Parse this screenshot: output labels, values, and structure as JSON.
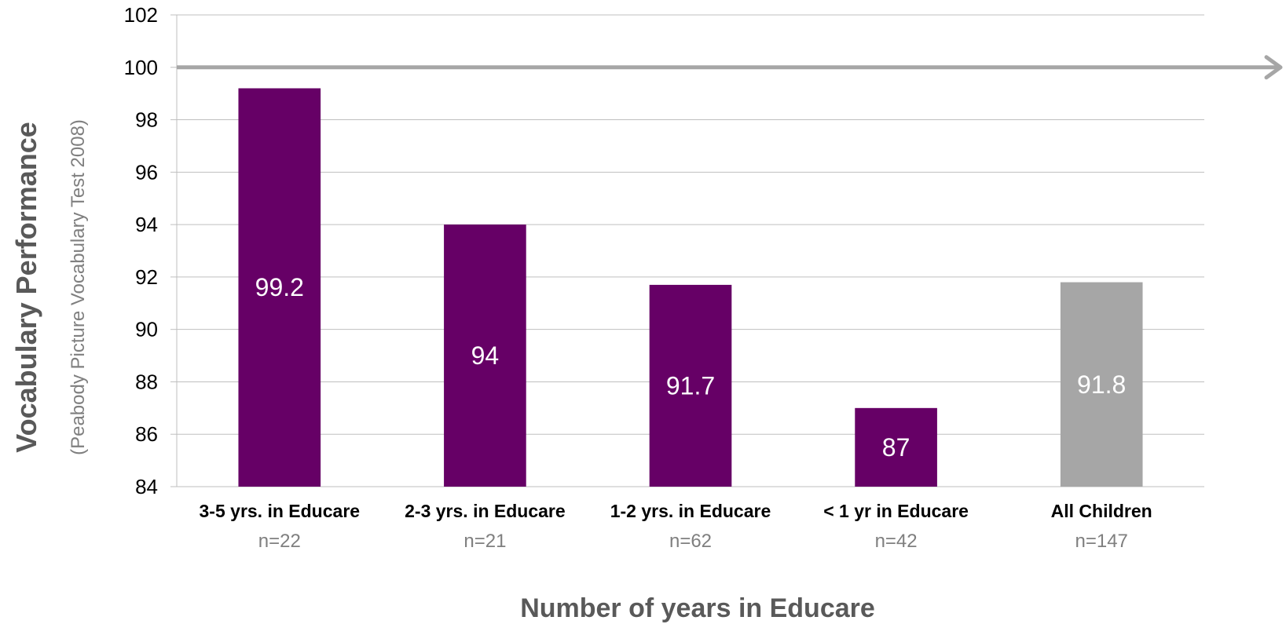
{
  "chart_data": {
    "type": "bar",
    "ylabel": "Vocabulary Performance",
    "ylabel_sub": "(Peabody Picture Vocabulary Test 2008)",
    "xlabel": "Number of years in Educare",
    "ylim": [
      84,
      102
    ],
    "yticks": [
      84,
      86,
      88,
      90,
      92,
      94,
      96,
      98,
      100,
      102
    ],
    "ytick_labels": [
      "84",
      "86",
      "88",
      "90",
      "92",
      "94",
      "96",
      "98",
      "100",
      "102"
    ],
    "grid": true,
    "reference_line": {
      "value": 100,
      "arrow": true,
      "color": "#A6A6A6"
    },
    "categories": [
      "3-5 yrs. in Educare",
      "2-3 yrs. in Educare",
      "1-2 yrs. in Educare",
      "< 1 yr in Educare",
      "All Children"
    ],
    "sample_sizes": [
      "n=22",
      "n=21",
      "n=62",
      "n=42",
      "n=147"
    ],
    "values": [
      99.2,
      94,
      91.7,
      87,
      91.8
    ],
    "value_labels": [
      "99.2",
      "94",
      "91.7",
      "87",
      "91.8"
    ],
    "colors": [
      "#660066",
      "#660066",
      "#660066",
      "#660066",
      "#A6A6A6"
    ]
  },
  "colors": {
    "grid": "#BFBFBF",
    "axis_title": "#595959",
    "sample_text": "#7F7F7F",
    "category_text": "#000000",
    "value_label": "#FFFFFF"
  }
}
